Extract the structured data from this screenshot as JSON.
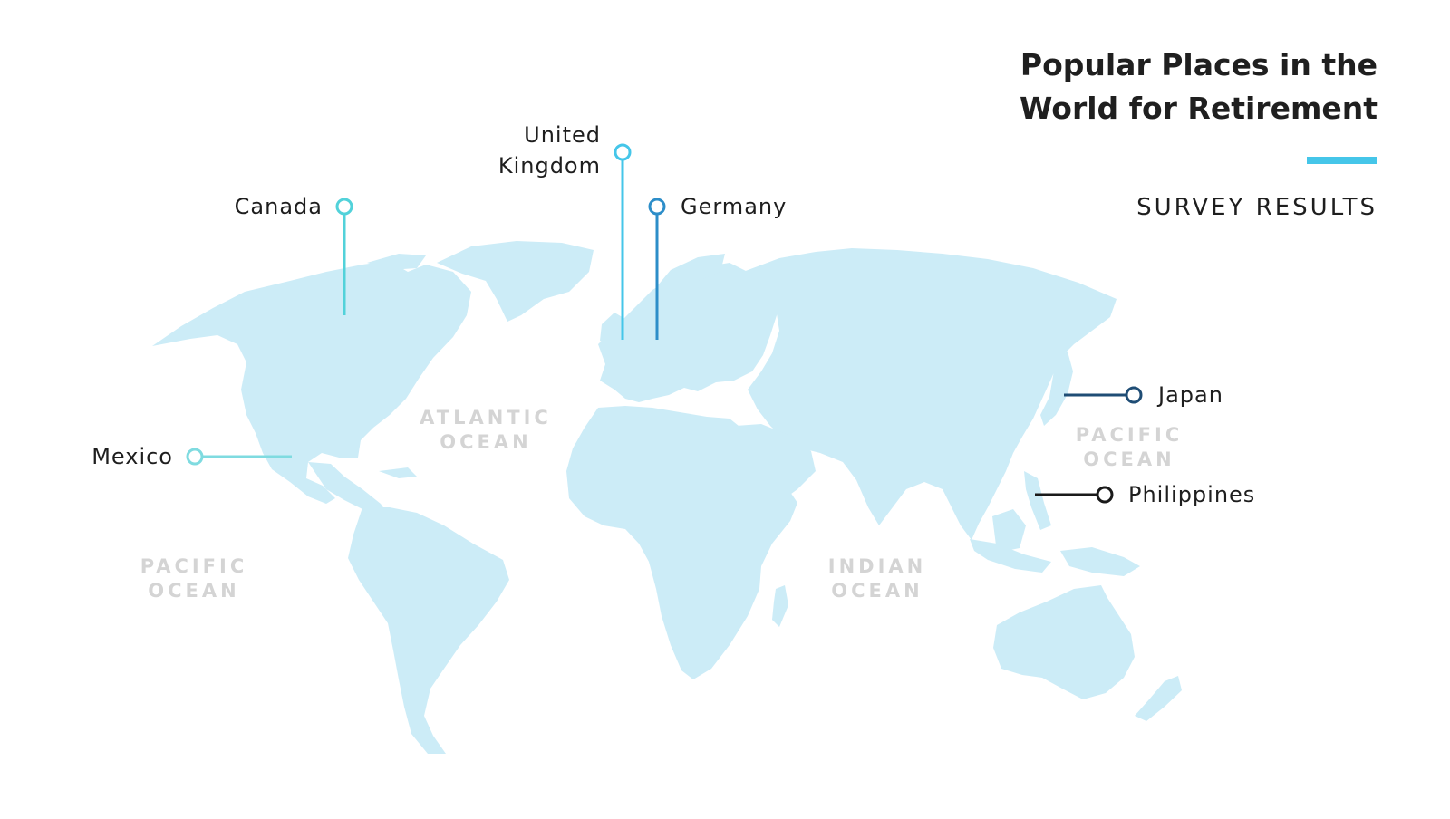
{
  "title": {
    "line1": "Popular Places in the",
    "line2": "World for Retirement"
  },
  "subtitle": "SURVEY RESULTS",
  "accent_color": "#45c6e9",
  "land_color": "#ccecf7",
  "oceans": [
    {
      "line1": "ATLANTIC",
      "line2": "OCEAN"
    },
    {
      "line1": "PACIFIC",
      "line2": "OCEAN"
    },
    {
      "line1": "PACIFIC",
      "line2": "OCEAN"
    },
    {
      "line1": "INDIAN",
      "line2": "OCEAN"
    }
  ],
  "markers": [
    {
      "id": "canada",
      "label": "Canada",
      "color": "#52d2da"
    },
    {
      "id": "uk",
      "label_line1": "United",
      "label_line2": "Kingdom",
      "color": "#45c6e9"
    },
    {
      "id": "germany",
      "label": "Germany",
      "color": "#2d8ec9"
    },
    {
      "id": "mexico",
      "label": "Mexico",
      "color": "#7fdbe0"
    },
    {
      "id": "japan",
      "label": "Japan",
      "color": "#1f4d75"
    },
    {
      "id": "philippines",
      "label": "Philippines",
      "color": "#1a1a1a"
    }
  ]
}
